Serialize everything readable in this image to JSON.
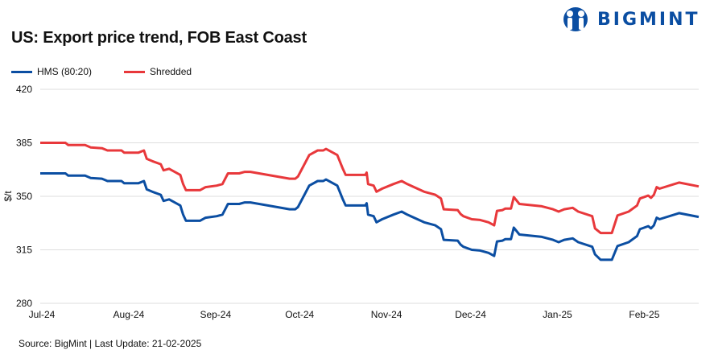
{
  "brand": {
    "name": "BIGMINT",
    "color": "#0b4ea2"
  },
  "title": "US: Export price trend, FOB East Coast",
  "source": "Source: BigMint | Last Update: 21-02-2025",
  "chart_data": {
    "type": "line",
    "title": "US: Export price trend, FOB East Coast",
    "xlabel": "",
    "ylabel": "$/t",
    "ylim": [
      280,
      420
    ],
    "yticks": [
      280,
      315,
      350,
      385,
      420
    ],
    "x_unit": "days since 1 Jul 2024",
    "xlim": [
      0,
      235
    ],
    "xticks": [
      {
        "day": 0,
        "label": "Jul-24"
      },
      {
        "day": 31,
        "label": "Aug-24"
      },
      {
        "day": 62,
        "label": "Sep-24"
      },
      {
        "day": 92,
        "label": "Oct-24"
      },
      {
        "day": 123,
        "label": "Nov-24"
      },
      {
        "day": 153,
        "label": "Dec-24"
      },
      {
        "day": 184,
        "label": "Jan-25"
      },
      {
        "day": 215,
        "label": "Feb-25"
      }
    ],
    "grid": true,
    "legend": "top-left",
    "series": [
      {
        "name": "HMS (80:20)",
        "color": "#0b4ea2",
        "points": [
          [
            0,
            365
          ],
          [
            9,
            365
          ],
          [
            10,
            363.5
          ],
          [
            16,
            363.5
          ],
          [
            18,
            362
          ],
          [
            22,
            361.5
          ],
          [
            24,
            360
          ],
          [
            29,
            360
          ],
          [
            30,
            358.5
          ],
          [
            35,
            358.5
          ],
          [
            37,
            360
          ],
          [
            38,
            354.5
          ],
          [
            40,
            353
          ],
          [
            43,
            351
          ],
          [
            44,
            347
          ],
          [
            46,
            348
          ],
          [
            50,
            344
          ],
          [
            51,
            338
          ],
          [
            52,
            334
          ],
          [
            57,
            334
          ],
          [
            59,
            336
          ],
          [
            63,
            337
          ],
          [
            65,
            338
          ],
          [
            67,
            345
          ],
          [
            71,
            345
          ],
          [
            73,
            346
          ],
          [
            75,
            346
          ],
          [
            89,
            341.5
          ],
          [
            91,
            341.5
          ],
          [
            92,
            343
          ],
          [
            96,
            357
          ],
          [
            99,
            360
          ],
          [
            101,
            360
          ],
          [
            102,
            361
          ],
          [
            106,
            357
          ],
          [
            108,
            348
          ],
          [
            109,
            344
          ],
          [
            116,
            344
          ],
          [
            116.5,
            345.5
          ],
          [
            117,
            338
          ],
          [
            119,
            337
          ],
          [
            120,
            333
          ],
          [
            122,
            335
          ],
          [
            126,
            338
          ],
          [
            129,
            340
          ],
          [
            131,
            338
          ],
          [
            137,
            333
          ],
          [
            141,
            331
          ],
          [
            143,
            328.5
          ],
          [
            144,
            321.5
          ],
          [
            149,
            321
          ],
          [
            150,
            318.5
          ],
          [
            151,
            317
          ],
          [
            154,
            315
          ],
          [
            157,
            314.5
          ],
          [
            160,
            313
          ],
          [
            162,
            311
          ],
          [
            163,
            320.5
          ],
          [
            165,
            321
          ],
          [
            166,
            322
          ],
          [
            168,
            322
          ],
          [
            169,
            329.5
          ],
          [
            171,
            325
          ],
          [
            179,
            323.5
          ],
          [
            183,
            321.5
          ],
          [
            185,
            320
          ],
          [
            187,
            321.5
          ],
          [
            190,
            322.5
          ],
          [
            192,
            320
          ],
          [
            197,
            317
          ],
          [
            198,
            312
          ],
          [
            200,
            308.5
          ],
          [
            204,
            308.5
          ],
          [
            206,
            317.5
          ],
          [
            210,
            320
          ],
          [
            213,
            324
          ],
          [
            214,
            328.5
          ],
          [
            217,
            330.5
          ],
          [
            218,
            329
          ],
          [
            219,
            331
          ],
          [
            220,
            336
          ],
          [
            221,
            335
          ],
          [
            228,
            339
          ],
          [
            235,
            336.5
          ]
        ]
      },
      {
        "name": "Shredded",
        "color": "#e8383b",
        "points": [
          [
            0,
            385
          ],
          [
            9,
            385
          ],
          [
            10,
            383.5
          ],
          [
            16,
            383.5
          ],
          [
            18,
            382
          ],
          [
            22,
            381.5
          ],
          [
            24,
            380
          ],
          [
            29,
            380
          ],
          [
            30,
            378.5
          ],
          [
            35,
            378.5
          ],
          [
            37,
            380
          ],
          [
            38,
            374.5
          ],
          [
            40,
            373
          ],
          [
            43,
            371
          ],
          [
            44,
            367
          ],
          [
            46,
            368
          ],
          [
            50,
            364
          ],
          [
            51,
            358
          ],
          [
            52,
            354
          ],
          [
            57,
            354
          ],
          [
            59,
            356
          ],
          [
            63,
            357
          ],
          [
            65,
            358
          ],
          [
            67,
            365
          ],
          [
            71,
            365
          ],
          [
            73,
            366
          ],
          [
            75,
            366
          ],
          [
            89,
            361.5
          ],
          [
            91,
            361.5
          ],
          [
            92,
            363
          ],
          [
            96,
            377
          ],
          [
            99,
            380
          ],
          [
            101,
            380
          ],
          [
            102,
            381
          ],
          [
            106,
            377
          ],
          [
            108,
            368
          ],
          [
            109,
            364
          ],
          [
            116,
            364
          ],
          [
            116.5,
            365.5
          ],
          [
            117,
            358
          ],
          [
            119,
            357
          ],
          [
            120,
            353
          ],
          [
            122,
            355
          ],
          [
            126,
            358
          ],
          [
            129,
            360
          ],
          [
            131,
            358
          ],
          [
            137,
            353
          ],
          [
            141,
            351
          ],
          [
            143,
            348.5
          ],
          [
            144,
            341.5
          ],
          [
            149,
            341
          ],
          [
            150,
            338.5
          ],
          [
            151,
            337
          ],
          [
            154,
            335
          ],
          [
            157,
            334.5
          ],
          [
            160,
            333
          ],
          [
            162,
            331
          ],
          [
            163,
            340.5
          ],
          [
            165,
            341
          ],
          [
            166,
            342
          ],
          [
            168,
            342
          ],
          [
            169,
            349.5
          ],
          [
            171,
            345
          ],
          [
            179,
            343.5
          ],
          [
            183,
            341.5
          ],
          [
            185,
            340
          ],
          [
            187,
            341.5
          ],
          [
            190,
            342.5
          ],
          [
            192,
            340
          ],
          [
            197,
            337
          ],
          [
            198,
            329
          ],
          [
            200,
            326
          ],
          [
            204,
            326
          ],
          [
            206,
            337.5
          ],
          [
            210,
            340
          ],
          [
            213,
            344
          ],
          [
            214,
            348.5
          ],
          [
            217,
            350.5
          ],
          [
            218,
            349
          ],
          [
            219,
            351
          ],
          [
            220,
            356
          ],
          [
            221,
            355
          ],
          [
            228,
            359
          ],
          [
            235,
            356.5
          ]
        ]
      }
    ]
  }
}
